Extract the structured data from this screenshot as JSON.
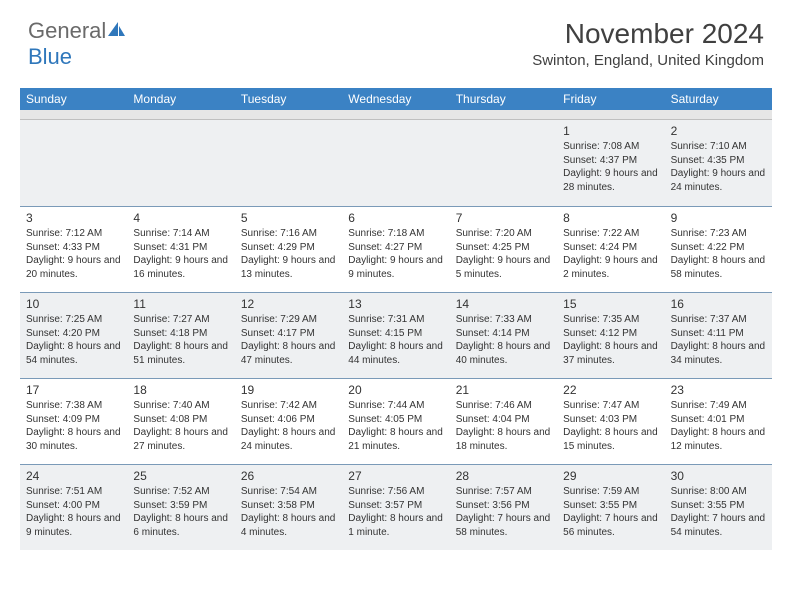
{
  "logo": {
    "text1": "General",
    "text2": "Blue"
  },
  "title": "November 2024",
  "location": "Swinton, England, United Kingdom",
  "styling": {
    "header_bg": "#3b82c4",
    "header_text_color": "#ffffff",
    "cell_border": "#7a9ab8",
    "shade_bg": "#eef0f2",
    "title_color": "#404040",
    "body_font_size": 10,
    "daynum_font_size": 12,
    "weekday_font_size": 12,
    "month_font_size": 28
  },
  "weekdays": [
    "Sunday",
    "Monday",
    "Tuesday",
    "Wednesday",
    "Thursday",
    "Friday",
    "Saturday"
  ],
  "weeks": [
    [
      null,
      null,
      null,
      null,
      null,
      {
        "day": "1",
        "sunrise": "Sunrise: 7:08 AM",
        "sunset": "Sunset: 4:37 PM",
        "daylight": "Daylight: 9 hours and 28 minutes."
      },
      {
        "day": "2",
        "sunrise": "Sunrise: 7:10 AM",
        "sunset": "Sunset: 4:35 PM",
        "daylight": "Daylight: 9 hours and 24 minutes."
      }
    ],
    [
      {
        "day": "3",
        "sunrise": "Sunrise: 7:12 AM",
        "sunset": "Sunset: 4:33 PM",
        "daylight": "Daylight: 9 hours and 20 minutes."
      },
      {
        "day": "4",
        "sunrise": "Sunrise: 7:14 AM",
        "sunset": "Sunset: 4:31 PM",
        "daylight": "Daylight: 9 hours and 16 minutes."
      },
      {
        "day": "5",
        "sunrise": "Sunrise: 7:16 AM",
        "sunset": "Sunset: 4:29 PM",
        "daylight": "Daylight: 9 hours and 13 minutes."
      },
      {
        "day": "6",
        "sunrise": "Sunrise: 7:18 AM",
        "sunset": "Sunset: 4:27 PM",
        "daylight": "Daylight: 9 hours and 9 minutes."
      },
      {
        "day": "7",
        "sunrise": "Sunrise: 7:20 AM",
        "sunset": "Sunset: 4:25 PM",
        "daylight": "Daylight: 9 hours and 5 minutes."
      },
      {
        "day": "8",
        "sunrise": "Sunrise: 7:22 AM",
        "sunset": "Sunset: 4:24 PM",
        "daylight": "Daylight: 9 hours and 2 minutes."
      },
      {
        "day": "9",
        "sunrise": "Sunrise: 7:23 AM",
        "sunset": "Sunset: 4:22 PM",
        "daylight": "Daylight: 8 hours and 58 minutes."
      }
    ],
    [
      {
        "day": "10",
        "sunrise": "Sunrise: 7:25 AM",
        "sunset": "Sunset: 4:20 PM",
        "daylight": "Daylight: 8 hours and 54 minutes."
      },
      {
        "day": "11",
        "sunrise": "Sunrise: 7:27 AM",
        "sunset": "Sunset: 4:18 PM",
        "daylight": "Daylight: 8 hours and 51 minutes."
      },
      {
        "day": "12",
        "sunrise": "Sunrise: 7:29 AM",
        "sunset": "Sunset: 4:17 PM",
        "daylight": "Daylight: 8 hours and 47 minutes."
      },
      {
        "day": "13",
        "sunrise": "Sunrise: 7:31 AM",
        "sunset": "Sunset: 4:15 PM",
        "daylight": "Daylight: 8 hours and 44 minutes."
      },
      {
        "day": "14",
        "sunrise": "Sunrise: 7:33 AM",
        "sunset": "Sunset: 4:14 PM",
        "daylight": "Daylight: 8 hours and 40 minutes."
      },
      {
        "day": "15",
        "sunrise": "Sunrise: 7:35 AM",
        "sunset": "Sunset: 4:12 PM",
        "daylight": "Daylight: 8 hours and 37 minutes."
      },
      {
        "day": "16",
        "sunrise": "Sunrise: 7:37 AM",
        "sunset": "Sunset: 4:11 PM",
        "daylight": "Daylight: 8 hours and 34 minutes."
      }
    ],
    [
      {
        "day": "17",
        "sunrise": "Sunrise: 7:38 AM",
        "sunset": "Sunset: 4:09 PM",
        "daylight": "Daylight: 8 hours and 30 minutes."
      },
      {
        "day": "18",
        "sunrise": "Sunrise: 7:40 AM",
        "sunset": "Sunset: 4:08 PM",
        "daylight": "Daylight: 8 hours and 27 minutes."
      },
      {
        "day": "19",
        "sunrise": "Sunrise: 7:42 AM",
        "sunset": "Sunset: 4:06 PM",
        "daylight": "Daylight: 8 hours and 24 minutes."
      },
      {
        "day": "20",
        "sunrise": "Sunrise: 7:44 AM",
        "sunset": "Sunset: 4:05 PM",
        "daylight": "Daylight: 8 hours and 21 minutes."
      },
      {
        "day": "21",
        "sunrise": "Sunrise: 7:46 AM",
        "sunset": "Sunset: 4:04 PM",
        "daylight": "Daylight: 8 hours and 18 minutes."
      },
      {
        "day": "22",
        "sunrise": "Sunrise: 7:47 AM",
        "sunset": "Sunset: 4:03 PM",
        "daylight": "Daylight: 8 hours and 15 minutes."
      },
      {
        "day": "23",
        "sunrise": "Sunrise: 7:49 AM",
        "sunset": "Sunset: 4:01 PM",
        "daylight": "Daylight: 8 hours and 12 minutes."
      }
    ],
    [
      {
        "day": "24",
        "sunrise": "Sunrise: 7:51 AM",
        "sunset": "Sunset: 4:00 PM",
        "daylight": "Daylight: 8 hours and 9 minutes."
      },
      {
        "day": "25",
        "sunrise": "Sunrise: 7:52 AM",
        "sunset": "Sunset: 3:59 PM",
        "daylight": "Daylight: 8 hours and 6 minutes."
      },
      {
        "day": "26",
        "sunrise": "Sunrise: 7:54 AM",
        "sunset": "Sunset: 3:58 PM",
        "daylight": "Daylight: 8 hours and 4 minutes."
      },
      {
        "day": "27",
        "sunrise": "Sunrise: 7:56 AM",
        "sunset": "Sunset: 3:57 PM",
        "daylight": "Daylight: 8 hours and 1 minute."
      },
      {
        "day": "28",
        "sunrise": "Sunrise: 7:57 AM",
        "sunset": "Sunset: 3:56 PM",
        "daylight": "Daylight: 7 hours and 58 minutes."
      },
      {
        "day": "29",
        "sunrise": "Sunrise: 7:59 AM",
        "sunset": "Sunset: 3:55 PM",
        "daylight": "Daylight: 7 hours and 56 minutes."
      },
      {
        "day": "30",
        "sunrise": "Sunrise: 8:00 AM",
        "sunset": "Sunset: 3:55 PM",
        "daylight": "Daylight: 7 hours and 54 minutes."
      }
    ]
  ]
}
